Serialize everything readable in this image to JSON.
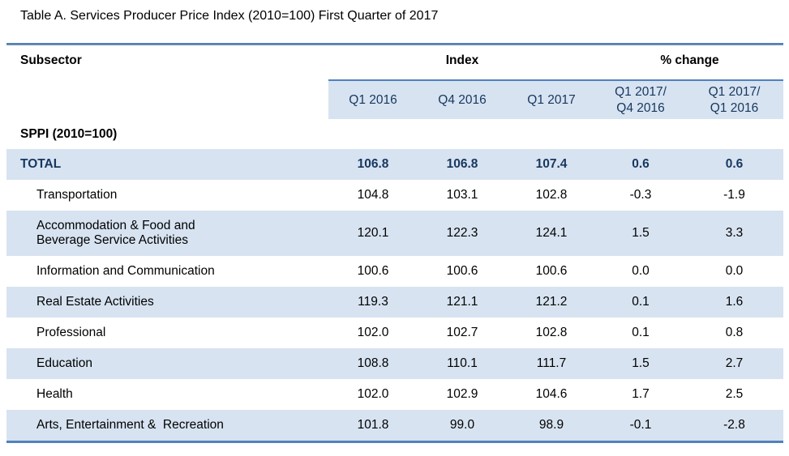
{
  "title": "Table A. Services Producer Price Index (2010=100) First Quarter of 2017",
  "table": {
    "group_headers": {
      "subsector": "Subsector",
      "index": "Index",
      "pct_change": "% change"
    },
    "column_headers": [
      "Q1 2016",
      "Q4 2016",
      "Q1 2017",
      "Q1 2017/\nQ4 2016",
      "Q1 2017/\nQ1 2016"
    ],
    "unit_label": "SPPI  (2010=100)",
    "rows": [
      {
        "label": "TOTAL",
        "emphasis": true,
        "values": [
          "106.8",
          "106.8",
          "107.4",
          "0.6",
          "0.6"
        ]
      },
      {
        "label": "Transportation",
        "emphasis": false,
        "values": [
          "104.8",
          "103.1",
          "102.8",
          "-0.3",
          "-1.9"
        ]
      },
      {
        "label": "Accommodation & Food and\nBeverage Service Activities",
        "emphasis": false,
        "values": [
          "120.1",
          "122.3",
          "124.1",
          "1.5",
          "3.3"
        ]
      },
      {
        "label": "Information and Communication",
        "emphasis": false,
        "values": [
          "100.6",
          "100.6",
          "100.6",
          "0.0",
          "0.0"
        ]
      },
      {
        "label": "Real Estate Activities",
        "emphasis": false,
        "values": [
          "119.3",
          "121.1",
          "121.2",
          "0.1",
          "1.6"
        ]
      },
      {
        "label": "Professional",
        "emphasis": false,
        "values": [
          "102.0",
          "102.7",
          "102.8",
          "0.1",
          "0.8"
        ]
      },
      {
        "label": "Education",
        "emphasis": false,
        "values": [
          "108.8",
          "110.1",
          "111.7",
          "1.5",
          "2.7"
        ]
      },
      {
        "label": "Health",
        "emphasis": false,
        "values": [
          "102.0",
          "102.9",
          "104.6",
          "1.7",
          "2.5"
        ]
      },
      {
        "label": "Arts, Entertainment &  Recreation",
        "emphasis": false,
        "values": [
          "101.8",
          "99.0",
          "98.9",
          "-0.1",
          "-2.8"
        ]
      }
    ]
  },
  "colors": {
    "accent_border": "#4f81bd",
    "row_highlight": "#d7e3f1",
    "emphasis_text": "#17375e"
  }
}
